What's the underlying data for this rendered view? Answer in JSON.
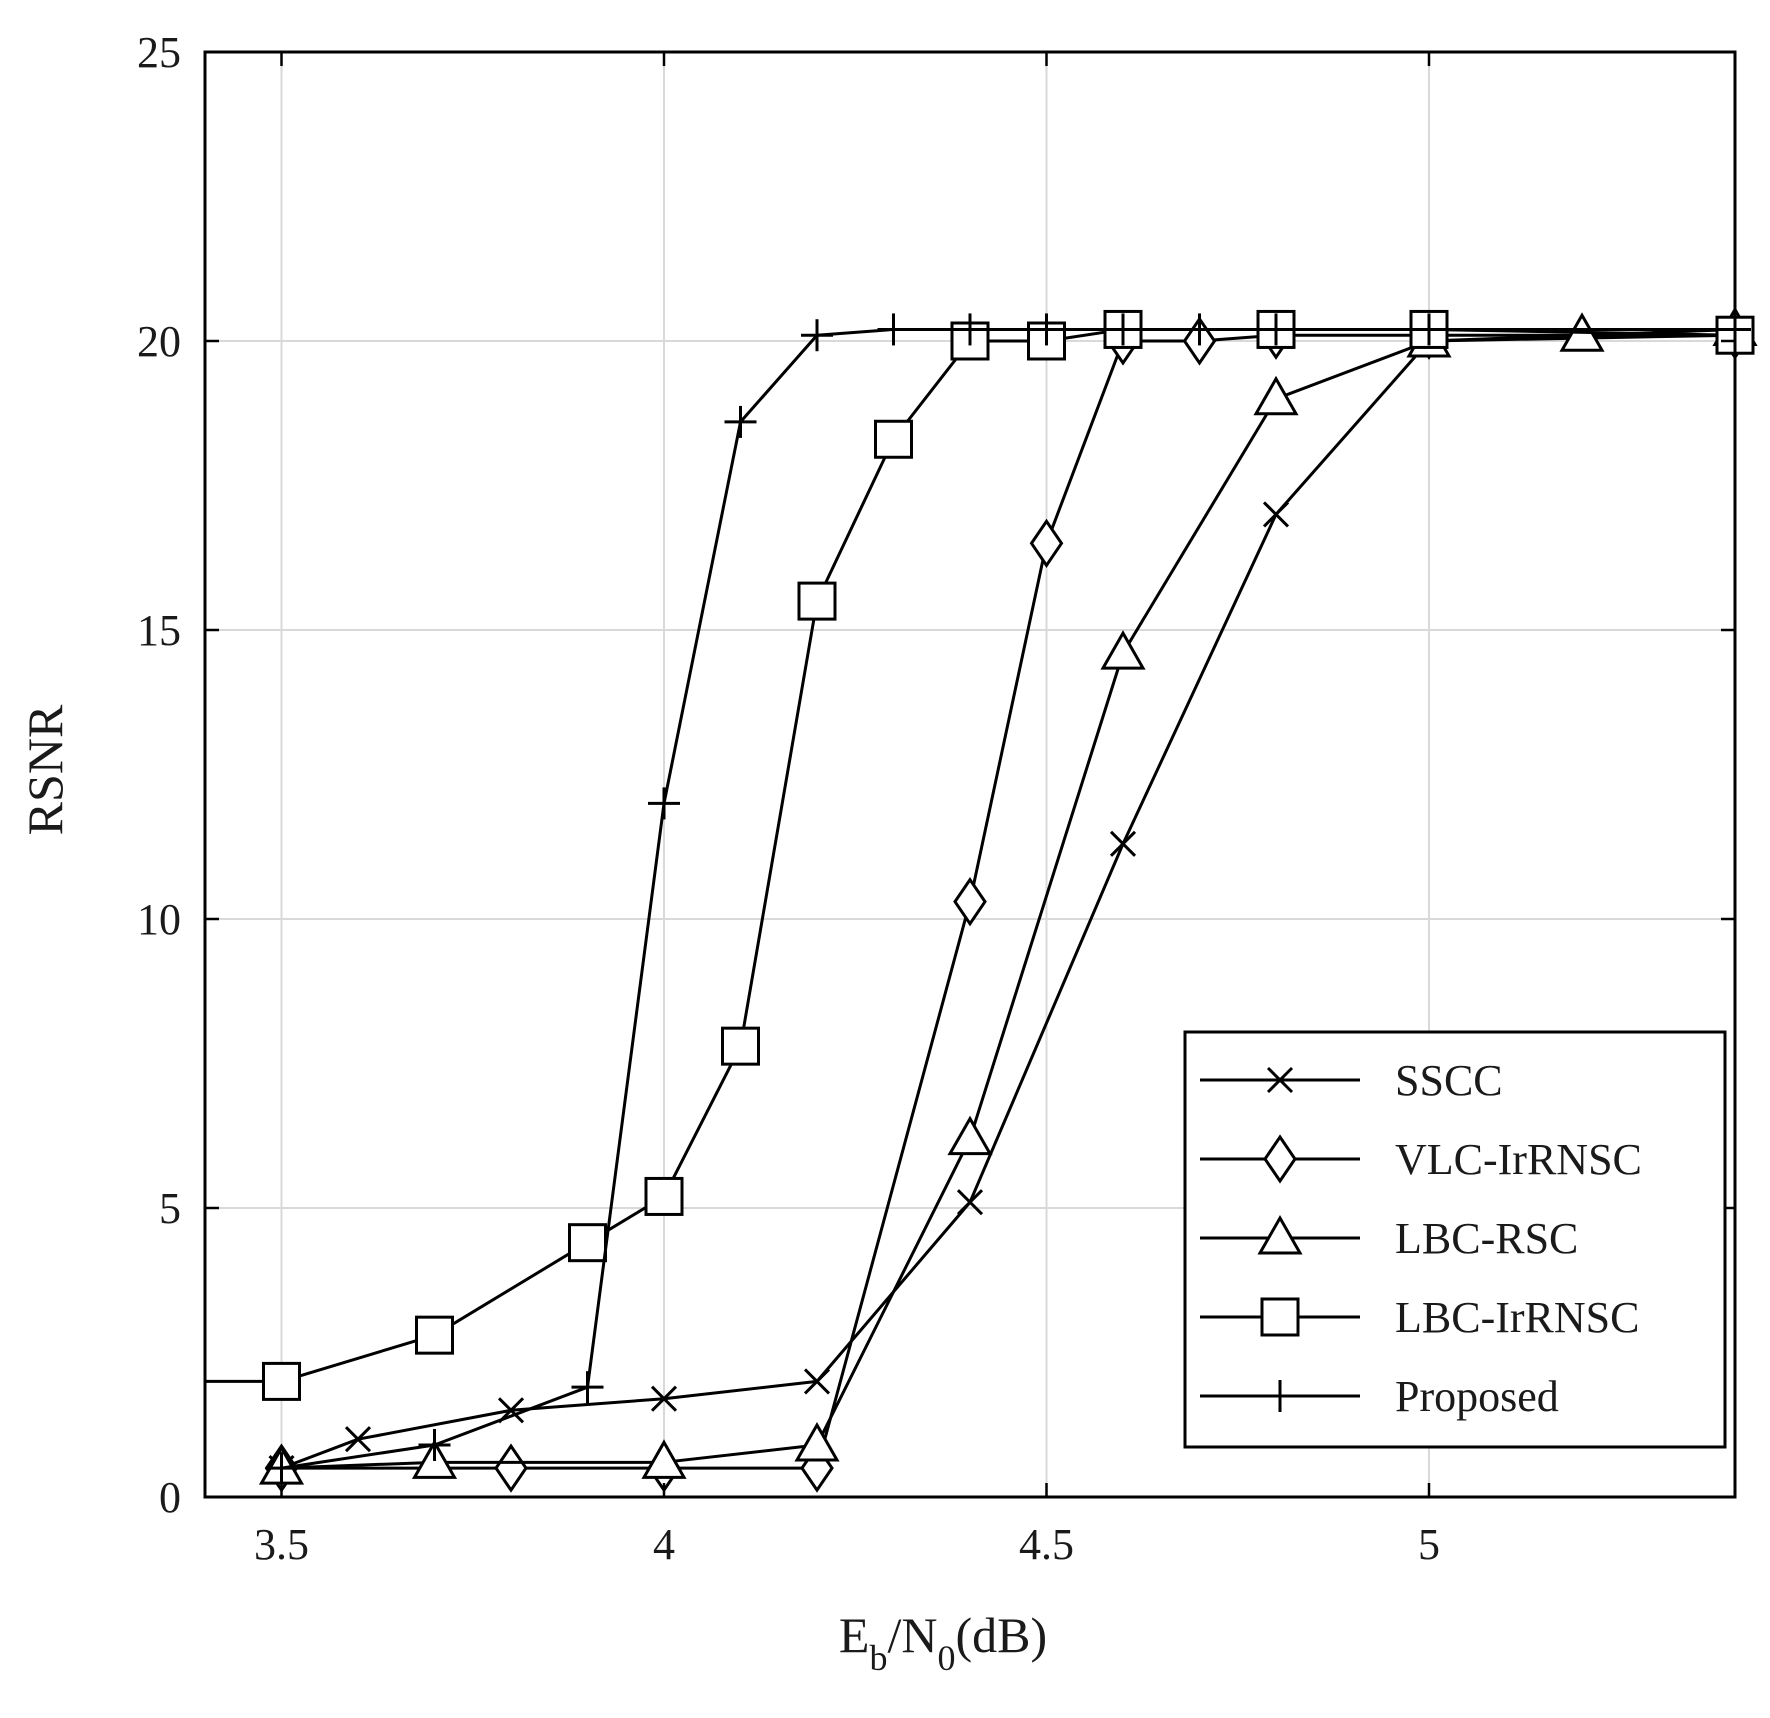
{
  "chart_data": {
    "type": "line",
    "xlabel_main": "E",
    "xlabel_sub1": "b",
    "xlabel_mid": "/N",
    "xlabel_sub2": "0",
    "xlabel_tail": "(dB)",
    "ylabel": "RSNR",
    "xlim": [
      3.4,
      5.4
    ],
    "ylim": [
      0,
      25
    ],
    "x_ticks": [
      3.5,
      4,
      4.5,
      5
    ],
    "x_tick_labels": [
      "3.5",
      "4",
      "4.5",
      "5"
    ],
    "y_ticks": [
      0,
      5,
      10,
      15,
      20,
      25
    ],
    "y_tick_labels": [
      "0",
      "5",
      "10",
      "15",
      "20",
      "25"
    ],
    "grid": true,
    "legend_position": "bottom-right",
    "series": [
      {
        "name": "SSCC",
        "marker": "x",
        "color": "#000000",
        "x": [
          3.5,
          3.6,
          3.8,
          4.0,
          4.2,
          4.4,
          4.6,
          4.8,
          5.0,
          5.4
        ],
        "y": [
          0.5,
          1.0,
          1.5,
          1.7,
          2.0,
          5.1,
          11.3,
          17.0,
          20.0,
          20.1
        ]
      },
      {
        "name": "VLC-IrRNSC",
        "marker": "diamond",
        "color": "#000000",
        "x": [
          3.5,
          3.8,
          4.0,
          4.2,
          4.4,
          4.5,
          4.6,
          4.7,
          4.8,
          5.0,
          5.4
        ],
        "y": [
          0.5,
          0.5,
          0.5,
          0.5,
          10.3,
          16.5,
          20.0,
          20.0,
          20.1,
          20.1,
          20.1
        ]
      },
      {
        "name": "LBC-RSC",
        "marker": "triangle",
        "color": "#000000",
        "x": [
          3.5,
          3.7,
          4.0,
          4.2,
          4.4,
          4.6,
          4.8,
          5.0,
          5.2,
          5.4
        ],
        "y": [
          0.5,
          0.6,
          0.6,
          0.9,
          6.2,
          14.6,
          19.0,
          20.0,
          20.1,
          20.2
        ]
      },
      {
        "name": "LBC-IrRNSC",
        "marker": "square",
        "color": "#000000",
        "x": [
          3.4,
          3.5,
          3.7,
          3.9,
          4.0,
          4.1,
          4.2,
          4.3,
          4.4,
          4.5,
          4.6,
          4.8,
          5.0,
          5.4
        ],
        "y": [
          2.0,
          2.0,
          2.8,
          4.4,
          5.2,
          7.8,
          15.5,
          18.3,
          20.0,
          20.0,
          20.2,
          20.2,
          20.2,
          20.1
        ]
      },
      {
        "name": "Proposed",
        "marker": "plus",
        "color": "#000000",
        "x": [
          3.5,
          3.7,
          3.9,
          4.0,
          4.1,
          4.2,
          4.3,
          4.4,
          4.5,
          4.6,
          4.7,
          4.8,
          5.0,
          5.4
        ],
        "y": [
          0.5,
          0.9,
          1.9,
          12.0,
          18.6,
          20.1,
          20.2,
          20.2,
          20.2,
          20.2,
          20.2,
          20.2,
          20.2,
          20.2
        ]
      }
    ]
  }
}
